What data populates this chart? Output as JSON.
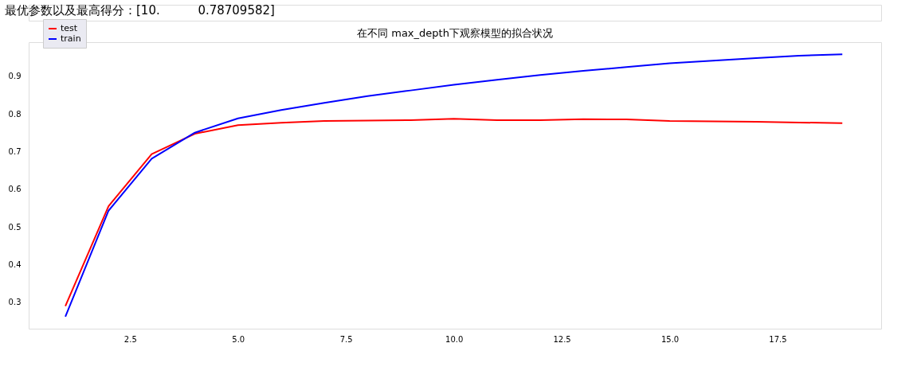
{
  "chart_data": {
    "type": "line",
    "title": "在不同 max_depth下观察模型的拟合状况",
    "annotations": [
      "最优参数以及最高得分：[10.          0.78709582]"
    ],
    "x": [
      1,
      2,
      3,
      4,
      5,
      6,
      7,
      8,
      9,
      10,
      11,
      12,
      13,
      14,
      15,
      16,
      17,
      18,
      19
    ],
    "series": [
      {
        "name": "test",
        "color": "#ff0000",
        "values": [
          0.29,
          0.555,
          0.693,
          0.747,
          0.77,
          0.776,
          0.781,
          0.782,
          0.783,
          0.787,
          0.783,
          0.783,
          0.786,
          0.785,
          0.781,
          0.78,
          0.779,
          0.777,
          0.775
        ]
      },
      {
        "name": "train",
        "color": "#0000ff",
        "values": [
          0.262,
          0.543,
          0.681,
          0.75,
          0.788,
          0.81,
          0.829,
          0.847,
          0.862,
          0.877,
          0.89,
          0.903,
          0.914,
          0.924,
          0.934,
          0.941,
          0.948,
          0.954,
          0.958
        ]
      }
    ],
    "xlim": [
      0.15,
      19.9
    ],
    "ylim": [
      0.23,
      0.99
    ],
    "xticks": [
      2.5,
      {
        "value": 5,
        "label": "5.0"
      },
      7.5,
      {
        "value": 10,
        "label": "10.0"
      },
      12.5,
      {
        "value": 15,
        "label": "15.0"
      },
      17.5
    ],
    "yticks": [
      0.3,
      0.4,
      0.5,
      0.6,
      0.7,
      0.8,
      0.9
    ],
    "grid": false,
    "legend": "top left",
    "marker": "none",
    "line_style": "solid"
  }
}
